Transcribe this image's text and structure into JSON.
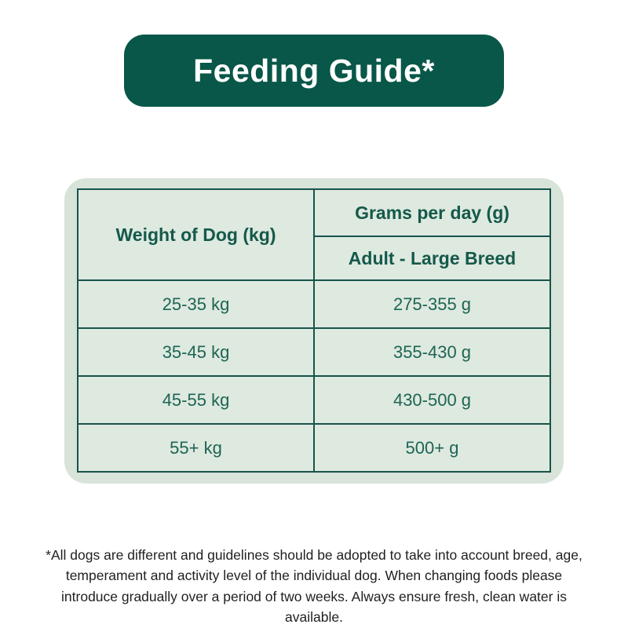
{
  "banner": {
    "title": "Feeding Guide*"
  },
  "table": {
    "weight_header": "Weight of Dog (kg)",
    "grams_header": "Grams per day (g)",
    "breed_header": "Adult - Large Breed",
    "rows": [
      {
        "weight": "25-35 kg",
        "grams": "275-355 g"
      },
      {
        "weight": "35-45 kg",
        "grams": "355-430 g"
      },
      {
        "weight": "45-55 kg",
        "grams": "430-500 g"
      },
      {
        "weight": "55+ kg",
        "grams": "500+ g"
      }
    ]
  },
  "footnote": "*All dogs are different and guidelines should be adopted to take into account breed, age, temperament and activity level of the individual dog. When changing foods please introduce gradually over a period of two weeks. Always ensure fresh, clean water is available.",
  "colors": {
    "banner_green": "#085748",
    "mint_bg": "#d8e3d9",
    "cell_bg": "#dee9e0",
    "border_green": "#17544a",
    "header_text": "#14594a",
    "data_text": "#1d6553",
    "footnote_text": "#1f1f1f"
  }
}
